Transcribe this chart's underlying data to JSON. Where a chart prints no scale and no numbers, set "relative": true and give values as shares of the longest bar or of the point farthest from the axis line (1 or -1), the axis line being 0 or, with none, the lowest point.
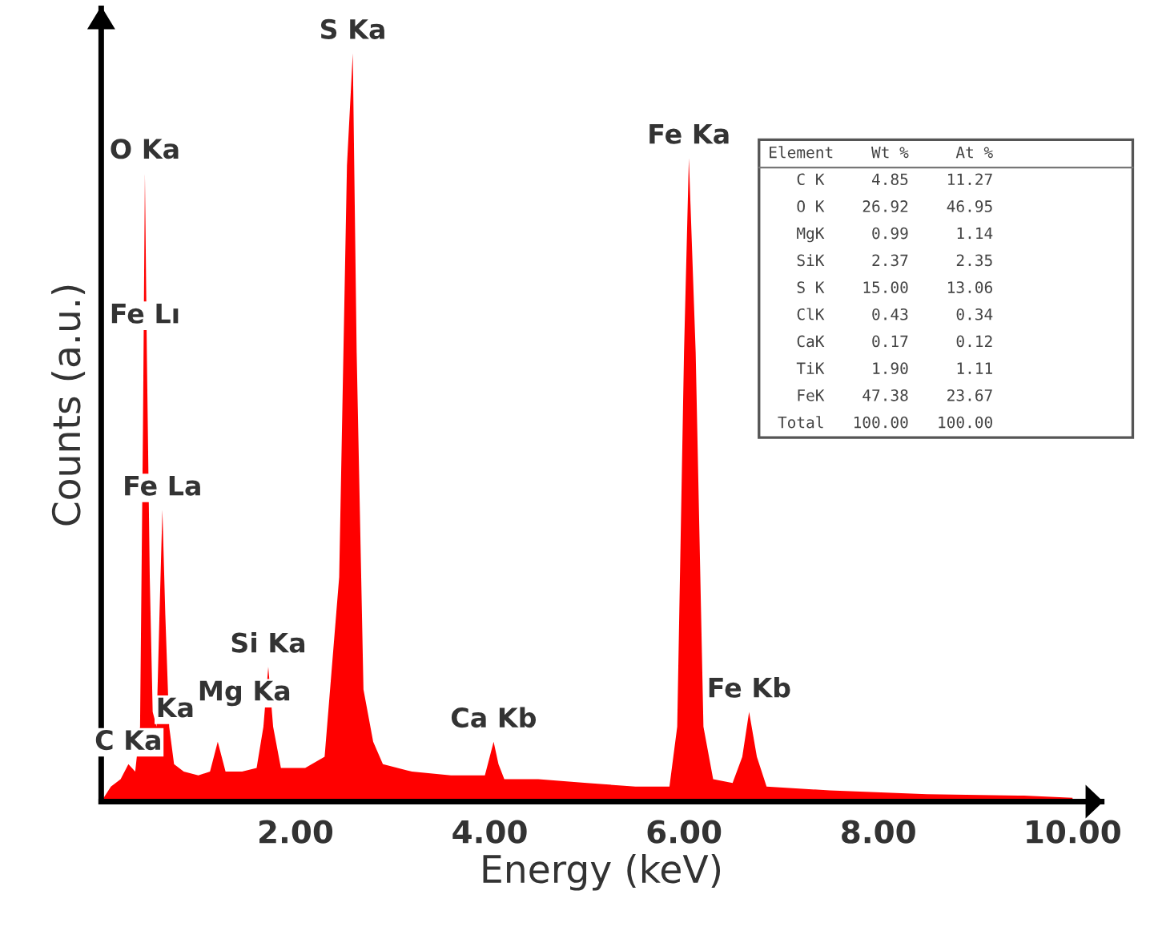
{
  "chart_data": {
    "type": "area",
    "relative": true,
    "xlabel": "Energy (keV)",
    "ylabel": "Counts (a.u.)",
    "xlim": [
      0,
      10.3
    ],
    "xticks": [
      {
        "value": 2,
        "label": "2.00"
      },
      {
        "value": 4,
        "label": "4.00"
      },
      {
        "value": 6,
        "label": "6.00"
      },
      {
        "value": 8,
        "label": "8.00"
      },
      {
        "value": 10,
        "label": "10.00"
      }
    ],
    "tick_labels": "x",
    "grid": false,
    "series": [
      {
        "color": "#ff0000",
        "x": [
          0.0,
          0.1,
          0.2,
          0.28,
          0.35,
          0.4,
          0.43,
          0.45,
          0.47,
          0.5,
          0.53,
          0.57,
          0.6,
          0.63,
          0.66,
          0.7,
          0.75,
          0.85,
          1.0,
          1.12,
          1.2,
          1.28,
          1.45,
          1.6,
          1.67,
          1.72,
          1.77,
          1.85,
          2.1,
          2.3,
          2.45,
          2.53,
          2.59,
          2.63,
          2.7,
          2.8,
          2.9,
          3.2,
          3.6,
          3.95,
          4.0,
          4.04,
          4.09,
          4.15,
          4.5,
          5.0,
          5.5,
          5.85,
          5.93,
          6.0,
          6.05,
          6.12,
          6.2,
          6.3,
          6.5,
          6.6,
          6.67,
          6.75,
          6.85,
          7.5,
          8.5,
          9.5,
          10.0
        ],
        "values": [
          0.0,
          0.02,
          0.03,
          0.05,
          0.04,
          0.1,
          0.5,
          0.84,
          0.6,
          0.3,
          0.12,
          0.1,
          0.25,
          0.39,
          0.25,
          0.1,
          0.05,
          0.04,
          0.035,
          0.04,
          0.08,
          0.04,
          0.04,
          0.045,
          0.1,
          0.18,
          0.1,
          0.045,
          0.045,
          0.06,
          0.3,
          0.85,
          1.0,
          0.6,
          0.15,
          0.08,
          0.05,
          0.04,
          0.035,
          0.035,
          0.06,
          0.08,
          0.05,
          0.03,
          0.03,
          0.025,
          0.02,
          0.02,
          0.1,
          0.6,
          0.86,
          0.6,
          0.1,
          0.03,
          0.025,
          0.06,
          0.12,
          0.06,
          0.02,
          0.015,
          0.01,
          0.008,
          0.005
        ]
      }
    ],
    "annotations": [
      {
        "text": "C Ka",
        "x": 0.28,
        "y": 0.05
      },
      {
        "text": "Ka",
        "x": 0.35,
        "y": 0.04
      },
      {
        "text": "O Ka",
        "x": 0.45,
        "y": 0.84
      },
      {
        "text": "Fe Lı",
        "x": 0.45,
        "y": 0.62
      },
      {
        "text": "Fe La",
        "x": 0.63,
        "y": 0.39
      },
      {
        "text": "Mg Ka",
        "x": 1.2,
        "y": 0.08
      },
      {
        "text": "Si Ka",
        "x": 1.72,
        "y": 0.18
      },
      {
        "text": "S Ka",
        "x": 2.59,
        "y": 1.0
      },
      {
        "text": "Ca Kb",
        "x": 4.04,
        "y": 0.08
      },
      {
        "text": "Fe Ka",
        "x": 6.05,
        "y": 0.86
      },
      {
        "text": "Fe Kb",
        "x": 6.67,
        "y": 0.12
      },
      "Element    Wt %     At %",
      "   C K     4.85    11.27",
      "   O K    26.92    46.95",
      "   MgK     0.99     1.14",
      "   SiK     2.37     2.35",
      "   S K    15.00    13.06",
      "   ClK     0.43     0.34",
      "   CaK     0.17     0.12",
      "   TiK     1.90     1.11",
      "   FeK    47.38    23.67",
      " Total   100.00   100.00"
    ]
  }
}
